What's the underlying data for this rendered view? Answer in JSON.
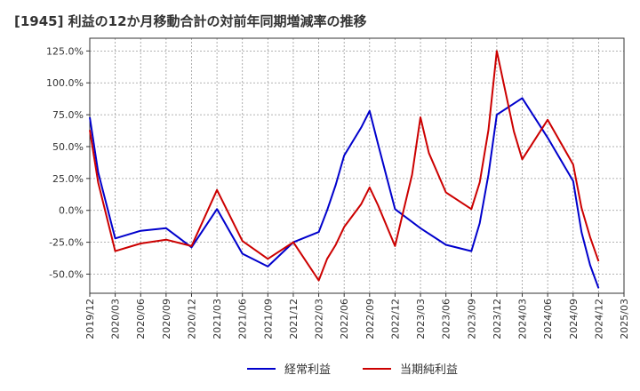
{
  "chart_data": {
    "type": "line",
    "title": "[1945]  利益の12か月移動合計の対前年同期増減率の推移",
    "xlabel": "",
    "ylabel": "",
    "ylim": [
      -65,
      135
    ],
    "y_ticks": [
      -50,
      -25,
      0,
      25,
      50,
      75,
      100,
      125
    ],
    "y_tick_labels": [
      "-50.0%",
      "-25.0%",
      "0.0%",
      "25.0%",
      "50.0%",
      "75.0%",
      "100.0%",
      "125.0%"
    ],
    "x_tick_labels": [
      "2019/12",
      "2020/03",
      "2020/06",
      "2020/09",
      "2020/12",
      "2021/03",
      "2021/06",
      "2021/09",
      "2021/12",
      "2022/03",
      "2022/06",
      "2022/09",
      "2022/12",
      "2023/03",
      "2023/06",
      "2023/09",
      "2023/12",
      "2024/03",
      "2024/06",
      "2024/09",
      "2024/12",
      "2025/03"
    ],
    "series": [
      {
        "name": "経常利益",
        "color": "#0000cc",
        "points": [
          [
            0,
            73
          ],
          [
            0.33,
            30
          ],
          [
            1,
            -22
          ],
          [
            2,
            -16
          ],
          [
            3,
            -14
          ],
          [
            4,
            -29
          ],
          [
            5,
            1
          ],
          [
            6,
            -34
          ],
          [
            7,
            -44
          ],
          [
            8,
            -25
          ],
          [
            9,
            -17
          ],
          [
            9.33,
            0
          ],
          [
            9.67,
            20
          ],
          [
            10,
            43
          ],
          [
            10.67,
            65
          ],
          [
            11,
            78
          ],
          [
            11.33,
            52
          ],
          [
            12,
            1
          ],
          [
            13,
            -14
          ],
          [
            14,
            -27
          ],
          [
            15,
            -32
          ],
          [
            15.33,
            -10
          ],
          [
            15.67,
            28
          ],
          [
            16,
            75
          ],
          [
            17,
            88
          ],
          [
            18,
            57
          ],
          [
            19,
            23
          ],
          [
            19.33,
            -17
          ],
          [
            19.67,
            -43
          ],
          [
            20,
            -61
          ]
        ]
      },
      {
        "name": "当期純利益",
        "color": "#cc0000",
        "points": [
          [
            0,
            63
          ],
          [
            0.33,
            22
          ],
          [
            1,
            -32
          ],
          [
            2,
            -26
          ],
          [
            3,
            -23
          ],
          [
            4,
            -28
          ],
          [
            5,
            16
          ],
          [
            6,
            -24
          ],
          [
            7,
            -38
          ],
          [
            8,
            -25
          ],
          [
            9,
            -55
          ],
          [
            9.33,
            -38
          ],
          [
            9.67,
            -27
          ],
          [
            10,
            -13
          ],
          [
            10.67,
            5
          ],
          [
            11,
            18
          ],
          [
            11.33,
            4
          ],
          [
            12,
            -28
          ],
          [
            12.67,
            28
          ],
          [
            13,
            73
          ],
          [
            13.33,
            45
          ],
          [
            14,
            14
          ],
          [
            15,
            1
          ],
          [
            15.33,
            22
          ],
          [
            15.67,
            63
          ],
          [
            16,
            125
          ],
          [
            16.67,
            62
          ],
          [
            17,
            40
          ],
          [
            18,
            71
          ],
          [
            19,
            36
          ],
          [
            19.33,
            2
          ],
          [
            19.67,
            -21
          ],
          [
            20,
            -40
          ]
        ]
      }
    ],
    "legend": {
      "position": "bottom",
      "entries": [
        "経常利益",
        "当期純利益"
      ]
    }
  }
}
